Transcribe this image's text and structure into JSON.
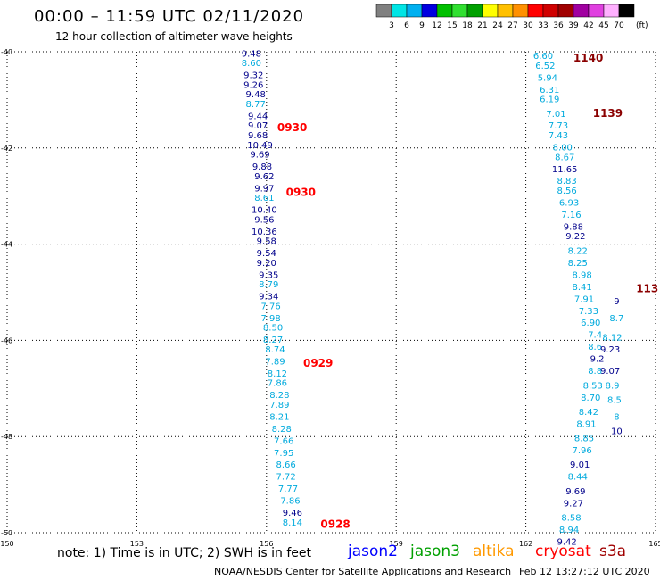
{
  "header": {
    "title": "00:00 – 11:59 UTC 02/11/2020",
    "subtitle": "12 hour collection of altimeter wave heights"
  },
  "colorbar": {
    "labels": [
      "3",
      "6",
      "9",
      "12",
      "15",
      "18",
      "21",
      "24",
      "27",
      "30",
      "33",
      "36",
      "39",
      "42",
      "45",
      "70"
    ],
    "unit": "(ft)",
    "colors": [
      "#808080",
      "#00e5e5",
      "#00b0f0",
      "#0000e0",
      "#00c000",
      "#30e030",
      "#00a000",
      "#ffff00",
      "#ffc000",
      "#ff9000",
      "#ff0000",
      "#d00000",
      "#a00000",
      "#a000a0",
      "#e040e0",
      "#ffb0ff",
      "#000000"
    ]
  },
  "footer": {
    "note": "note: 1) Time is in UTC; 2) SWH is in feet",
    "satellites": [
      {
        "label": "jason2",
        "color": "#0000ff"
      },
      {
        "label": "jason3",
        "color": "#00a000"
      },
      {
        "label": "altika",
        "color": "#ff9900"
      },
      {
        "label": "cryosat",
        "color": "#ff0000"
      },
      {
        "label": "s3a",
        "color": "#a00000"
      }
    ],
    "credit": "NOAA/NESDIS Center for Satellite Applications and Research",
    "timestamp": "Feb 12 13:27:12 UTC 2020"
  },
  "chart_data": {
    "type": "scatter",
    "title": "00:00 – 11:59 UTC 02/11/2020",
    "subtitle": "12 hour collection of altimeter wave heights",
    "xlim": [
      150,
      165
    ],
    "ylim": [
      -50,
      -40
    ],
    "x_ticks": [
      "150",
      "153",
      "156",
      "159",
      "162",
      "165"
    ],
    "y_ticks": [
      "-40",
      "-42",
      "-44",
      "-46",
      "-48",
      "-50"
    ],
    "grid": true,
    "colors": {
      "dark": "#00008b",
      "light": "#00aadd",
      "time_red": "#ff0000",
      "time_dark": "#8b0000"
    },
    "track_left": [
      {
        "x": 155.65,
        "y": -40.1,
        "v": "9.48",
        "c": "dark"
      },
      {
        "x": 155.65,
        "y": -40.3,
        "v": "8.60",
        "c": "light"
      },
      {
        "x": 155.7,
        "y": -40.55,
        "v": "9.32",
        "c": "dark"
      },
      {
        "x": 155.7,
        "y": -40.75,
        "v": "9.26",
        "c": "dark"
      },
      {
        "x": 155.75,
        "y": -40.95,
        "v": "9.48",
        "c": "dark"
      },
      {
        "x": 155.75,
        "y": -41.15,
        "v": "8.77",
        "c": "light"
      },
      {
        "x": 155.8,
        "y": -41.4,
        "v": "9.44",
        "c": "dark"
      },
      {
        "x": 155.8,
        "y": -41.6,
        "v": "9.07",
        "c": "dark"
      },
      {
        "x": 155.8,
        "y": -41.8,
        "v": "9.68",
        "c": "dark"
      },
      {
        "x": 155.85,
        "y": -42.0,
        "v": "10.49",
        "c": "dark"
      },
      {
        "x": 155.85,
        "y": -42.2,
        "v": "9.69",
        "c": "dark"
      },
      {
        "x": 155.9,
        "y": -42.45,
        "v": "9.88",
        "c": "dark"
      },
      {
        "x": 155.95,
        "y": -42.65,
        "v": "9.62",
        "c": "dark"
      },
      {
        "x": 155.95,
        "y": -42.9,
        "v": "9.97",
        "c": "dark"
      },
      {
        "x": 155.95,
        "y": -43.1,
        "v": "8.61",
        "c": "light"
      },
      {
        "x": 155.95,
        "y": -43.35,
        "v": "10.40",
        "c": "dark"
      },
      {
        "x": 155.95,
        "y": -43.55,
        "v": "9.56",
        "c": "dark"
      },
      {
        "x": 155.95,
        "y": -43.8,
        "v": "10.36",
        "c": "dark"
      },
      {
        "x": 156.0,
        "y": -44.0,
        "v": "9.58",
        "c": "dark"
      },
      {
        "x": 156.0,
        "y": -44.25,
        "v": "9.54",
        "c": "dark"
      },
      {
        "x": 156.0,
        "y": -44.45,
        "v": "9.20",
        "c": "dark"
      },
      {
        "x": 156.05,
        "y": -44.7,
        "v": "9.35",
        "c": "dark"
      },
      {
        "x": 156.05,
        "y": -44.9,
        "v": "8.79",
        "c": "light"
      },
      {
        "x": 156.05,
        "y": -45.15,
        "v": "9.34",
        "c": "dark"
      },
      {
        "x": 156.1,
        "y": -45.35,
        "v": "7.76",
        "c": "light"
      },
      {
        "x": 156.1,
        "y": -45.6,
        "v": "7.98",
        "c": "light"
      },
      {
        "x": 156.15,
        "y": -45.8,
        "v": "8.50",
        "c": "light"
      },
      {
        "x": 156.15,
        "y": -46.05,
        "v": "8.27",
        "c": "light"
      },
      {
        "x": 156.2,
        "y": -46.25,
        "v": "8.74",
        "c": "light"
      },
      {
        "x": 156.2,
        "y": -46.5,
        "v": "7.89",
        "c": "light"
      },
      {
        "x": 156.25,
        "y": -46.75,
        "v": "8.12",
        "c": "light"
      },
      {
        "x": 156.25,
        "y": -46.95,
        "v": "7.86",
        "c": "light"
      },
      {
        "x": 156.3,
        "y": -47.2,
        "v": "8.28",
        "c": "light"
      },
      {
        "x": 156.3,
        "y": -47.4,
        "v": "7.89",
        "c": "light"
      },
      {
        "x": 156.3,
        "y": -47.65,
        "v": "8.21",
        "c": "light"
      },
      {
        "x": 156.35,
        "y": -47.9,
        "v": "8.28",
        "c": "light"
      },
      {
        "x": 156.4,
        "y": -48.15,
        "v": "7.66",
        "c": "light"
      },
      {
        "x": 156.4,
        "y": -48.4,
        "v": "7.95",
        "c": "light"
      },
      {
        "x": 156.45,
        "y": -48.65,
        "v": "8.66",
        "c": "light"
      },
      {
        "x": 156.45,
        "y": -48.9,
        "v": "7.72",
        "c": "light"
      },
      {
        "x": 156.5,
        "y": -49.15,
        "v": "7.77",
        "c": "light"
      },
      {
        "x": 156.55,
        "y": -49.4,
        "v": "7.86",
        "c": "light"
      },
      {
        "x": 156.6,
        "y": -49.65,
        "v": "9.46",
        "c": "dark"
      },
      {
        "x": 156.6,
        "y": -49.85,
        "v": "8.14",
        "c": "light"
      }
    ],
    "track_right": [
      {
        "x": 162.4,
        "y": -40.15,
        "v": "6.60",
        "c": "light"
      },
      {
        "x": 162.45,
        "y": -40.35,
        "v": "6.52",
        "c": "light"
      },
      {
        "x": 162.5,
        "y": -40.6,
        "v": "5.94",
        "c": "light"
      },
      {
        "x": 162.55,
        "y": -40.85,
        "v": "6.31",
        "c": "light"
      },
      {
        "x": 162.55,
        "y": -41.05,
        "v": "6.19",
        "c": "light"
      },
      {
        "x": 162.7,
        "y": -41.35,
        "v": "7.01",
        "c": "light"
      },
      {
        "x": 162.75,
        "y": -41.6,
        "v": "7.73",
        "c": "light"
      },
      {
        "x": 162.75,
        "y": -41.8,
        "v": "7.43",
        "c": "light"
      },
      {
        "x": 162.85,
        "y": -42.05,
        "v": "8.00",
        "c": "light"
      },
      {
        "x": 162.9,
        "y": -42.25,
        "v": "8.67",
        "c": "light"
      },
      {
        "x": 162.9,
        "y": -42.5,
        "v": "11.65",
        "c": "dark"
      },
      {
        "x": 162.95,
        "y": -42.75,
        "v": "8.83",
        "c": "light"
      },
      {
        "x": 162.95,
        "y": -42.95,
        "v": "8.56",
        "c": "light"
      },
      {
        "x": 163.0,
        "y": -43.2,
        "v": "6.93",
        "c": "light"
      },
      {
        "x": 163.05,
        "y": -43.45,
        "v": "7.16",
        "c": "light"
      },
      {
        "x": 163.1,
        "y": -43.7,
        "v": "9.88",
        "c": "dark"
      },
      {
        "x": 163.15,
        "y": -43.9,
        "v": "9.22",
        "c": "dark"
      },
      {
        "x": 163.2,
        "y": -44.2,
        "v": "8.22",
        "c": "light"
      },
      {
        "x": 163.2,
        "y": -44.45,
        "v": "8.25",
        "c": "light"
      },
      {
        "x": 163.3,
        "y": -44.7,
        "v": "8.98",
        "c": "light"
      },
      {
        "x": 163.3,
        "y": -44.95,
        "v": "8.41",
        "c": "light"
      },
      {
        "x": 163.35,
        "y": -45.2,
        "v": "7.91",
        "c": "light"
      },
      {
        "x": 163.45,
        "y": -45.45,
        "v": "7.33",
        "c": "light"
      },
      {
        "x": 163.5,
        "y": -45.7,
        "v": "6.90",
        "c": "light"
      },
      {
        "x": 163.6,
        "y": -45.95,
        "v": "7.4",
        "c": "light"
      },
      {
        "x": 163.6,
        "y": -46.2,
        "v": "8.6",
        "c": "light"
      },
      {
        "x": 163.65,
        "y": -46.45,
        "v": "9.2",
        "c": "dark"
      },
      {
        "x": 163.6,
        "y": -46.7,
        "v": "8.8",
        "c": "light"
      },
      {
        "x": 163.55,
        "y": -47.0,
        "v": "8.53",
        "c": "light"
      },
      {
        "x": 163.5,
        "y": -47.25,
        "v": "8.70",
        "c": "light"
      },
      {
        "x": 163.45,
        "y": -47.55,
        "v": "8.42",
        "c": "light"
      },
      {
        "x": 163.4,
        "y": -47.8,
        "v": "8.91",
        "c": "light"
      },
      {
        "x": 163.35,
        "y": -48.1,
        "v": "8.85",
        "c": "light"
      },
      {
        "x": 163.3,
        "y": -48.35,
        "v": "7.96",
        "c": "light"
      },
      {
        "x": 163.25,
        "y": -48.65,
        "v": "9.01",
        "c": "dark"
      },
      {
        "x": 163.2,
        "y": -48.9,
        "v": "8.44",
        "c": "light"
      },
      {
        "x": 163.15,
        "y": -49.2,
        "v": "9.69",
        "c": "dark"
      },
      {
        "x": 163.1,
        "y": -49.45,
        "v": "9.27",
        "c": "dark"
      },
      {
        "x": 163.05,
        "y": -49.75,
        "v": "8.58",
        "c": "light"
      },
      {
        "x": 163.0,
        "y": -50.0,
        "v": "8.94",
        "c": "light"
      },
      {
        "x": 162.95,
        "y": -50.25,
        "v": "9.42",
        "c": "dark"
      }
    ],
    "track_edge": [
      {
        "x": 164.1,
        "y": -45.25,
        "v": "9",
        "c": "dark"
      },
      {
        "x": 164.1,
        "y": -45.6,
        "v": "8.7",
        "c": "light"
      },
      {
        "x": 164.0,
        "y": -46.0,
        "v": "8.12",
        "c": "light"
      },
      {
        "x": 163.95,
        "y": -46.25,
        "v": "9.23",
        "c": "dark"
      },
      {
        "x": 163.95,
        "y": -46.7,
        "v": "9.07",
        "c": "dark"
      },
      {
        "x": 164.0,
        "y": -47.0,
        "v": "8.9",
        "c": "light"
      },
      {
        "x": 164.05,
        "y": -47.3,
        "v": "8.5",
        "c": "light"
      },
      {
        "x": 164.1,
        "y": -47.65,
        "v": "8",
        "c": "light"
      },
      {
        "x": 164.1,
        "y": -47.95,
        "v": "10",
        "c": "dark"
      }
    ],
    "time_labels": [
      {
        "x": 156.25,
        "y": -41.65,
        "v": "0930",
        "c": "time_red"
      },
      {
        "x": 156.45,
        "y": -43.0,
        "v": "0930",
        "c": "time_red"
      },
      {
        "x": 156.85,
        "y": -46.55,
        "v": "0929",
        "c": "time_red"
      },
      {
        "x": 157.25,
        "y": -49.9,
        "v": "0928",
        "c": "time_red"
      },
      {
        "x": 163.1,
        "y": -40.2,
        "v": "1140",
        "c": "time_dark"
      },
      {
        "x": 163.55,
        "y": -41.35,
        "v": "1139",
        "c": "time_dark"
      },
      {
        "x": 164.55,
        "y": -45.0,
        "v": "113",
        "c": "time_dark"
      }
    ]
  }
}
